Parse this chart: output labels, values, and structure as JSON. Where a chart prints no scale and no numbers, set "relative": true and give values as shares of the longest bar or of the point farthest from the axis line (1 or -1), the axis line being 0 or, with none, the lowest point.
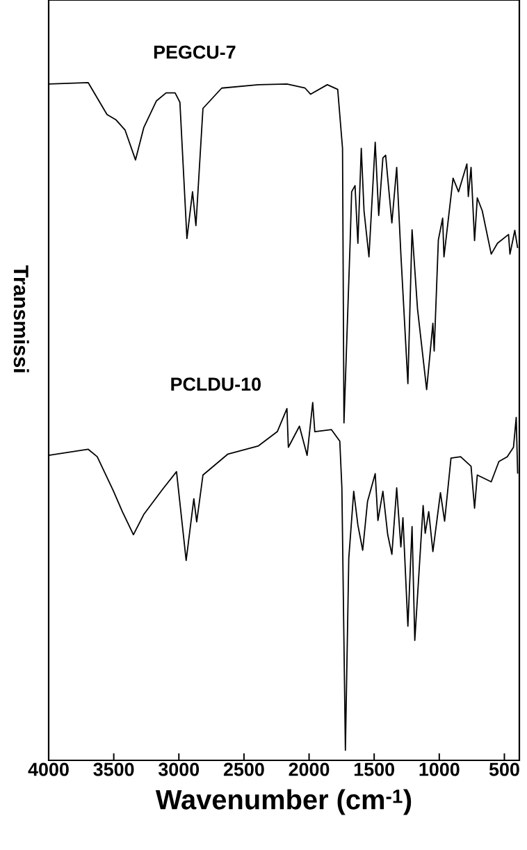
{
  "chart_data": {
    "type": "line",
    "relative": true,
    "xlabel": "Wavenumber (cm$^{-1}$)",
    "ylabel": "Transmissi",
    "xlim": [
      4000,
      385
    ],
    "xticks": [
      4000,
      3500,
      3000,
      2500,
      2000,
      1500,
      1000,
      500
    ],
    "series": [
      {
        "name": "PEGCU-7",
        "color": "#000000",
        "x": [
          4000,
          3696,
          3552,
          3482,
          3413,
          3333,
          3269,
          3173,
          3098,
          3029,
          2992,
          2938,
          2895,
          2869,
          2815,
          2671,
          2389,
          2170,
          2031,
          1988,
          1860,
          1780,
          1743,
          1732,
          1684,
          1673,
          1647,
          1625,
          1599,
          1578,
          1540,
          1492,
          1465,
          1433,
          1412,
          1364,
          1327,
          1295,
          1241,
          1209,
          1167,
          1097,
          1049,
          1039,
          1007,
          974,
          964,
          894,
          852,
          788,
          777,
          756,
          729,
          708,
          670,
          601,
          553,
          468,
          457,
          420,
          398
        ],
        "values": [
          0.998,
          1.0,
          0.953,
          0.945,
          0.93,
          0.886,
          0.934,
          0.973,
          0.985,
          0.985,
          0.971,
          0.77,
          0.839,
          0.789,
          0.962,
          0.992,
          0.997,
          0.998,
          0.992,
          0.983,
          0.997,
          0.99,
          0.903,
          0.498,
          0.768,
          0.839,
          0.848,
          0.763,
          0.903,
          0.811,
          0.743,
          0.912,
          0.804,
          0.889,
          0.893,
          0.793,
          0.875,
          0.747,
          0.556,
          0.783,
          0.666,
          0.547,
          0.645,
          0.604,
          0.768,
          0.8,
          0.743,
          0.859,
          0.839,
          0.88,
          0.832,
          0.875,
          0.767,
          0.83,
          0.811,
          0.747,
          0.763,
          0.776,
          0.747,
          0.782,
          0.756
        ]
      },
      {
        "name": "PCLDU-10",
        "color": "#000000",
        "x": [
          4000,
          3696,
          3627,
          3504,
          3434,
          3349,
          3269,
          3125,
          3018,
          2944,
          2885,
          2863,
          2815,
          2623,
          2389,
          2244,
          2170,
          2159,
          2074,
          2015,
          1972,
          1956,
          1828,
          1764,
          1748,
          1721,
          1695,
          1657,
          1625,
          1588,
          1551,
          1492,
          1471,
          1433,
          1396,
          1364,
          1327,
          1295,
          1279,
          1241,
          1209,
          1188,
          1124,
          1108,
          1081,
          1049,
          991,
          959,
          910,
          836,
          756,
          729,
          708,
          601,
          542,
          478,
          430,
          409,
          398
        ],
        "values": [
          0.45,
          0.459,
          0.448,
          0.398,
          0.367,
          0.333,
          0.363,
          0.4,
          0.426,
          0.295,
          0.386,
          0.352,
          0.421,
          0.452,
          0.464,
          0.485,
          0.519,
          0.462,
          0.493,
          0.45,
          0.528,
          0.485,
          0.488,
          0.471,
          0.402,
          0.015,
          0.298,
          0.397,
          0.347,
          0.31,
          0.382,
          0.423,
          0.354,
          0.397,
          0.333,
          0.304,
          0.402,
          0.315,
          0.358,
          0.198,
          0.345,
          0.177,
          0.376,
          0.335,
          0.367,
          0.308,
          0.395,
          0.353,
          0.446,
          0.448,
          0.434,
          0.372,
          0.421,
          0.411,
          0.441,
          0.448,
          0.462,
          0.506,
          0.423
        ]
      }
    ]
  }
}
